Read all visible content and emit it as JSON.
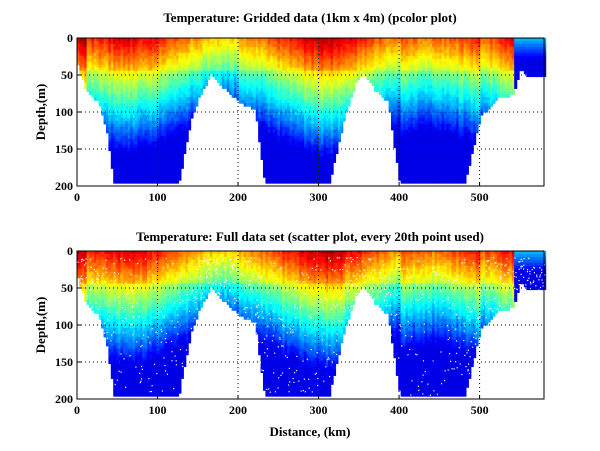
{
  "chart_data": [
    {
      "type": "heatmap",
      "title": "Temperature: Gridded data (1km x 4m) (pcolor plot)",
      "xlabel": "",
      "ylabel": "Depth,(m)",
      "xlim": [
        0,
        580
      ],
      "ylim": [
        200,
        0
      ],
      "xticks": [
        0,
        100,
        200,
        300,
        400,
        500
      ],
      "yticks": [
        0,
        50,
        100,
        150,
        200
      ],
      "grid": true,
      "colormap": "jet",
      "style": "pcolor",
      "bottom_profile": {
        "distance_km": [
          0,
          10,
          25,
          35,
          45,
          90,
          125,
          140,
          150,
          165,
          180,
          200,
          220,
          232,
          300,
          312,
          330,
          345,
          355,
          370,
          385,
          400,
          480,
          488,
          500,
          520,
          540,
          550,
          560,
          580
        ],
        "max_depth_m": [
          35,
          70,
          85,
          120,
          196,
          196,
          196,
          110,
          80,
          48,
          65,
          85,
          95,
          196,
          196,
          196,
          110,
          60,
          45,
          70,
          85,
          196,
          196,
          160,
          105,
          80,
          75,
          40,
          52,
          52
        ]
      }
    },
    {
      "type": "scatter",
      "title": "Temperature: Full data set (scatter plot, every 20th point used)",
      "xlabel": "Distance, (km)",
      "ylabel": "Depth,(m)",
      "xlim": [
        0,
        580
      ],
      "ylim": [
        200,
        0
      ],
      "xticks": [
        0,
        100,
        200,
        300,
        400,
        500
      ],
      "yticks": [
        0,
        50,
        100,
        150,
        200
      ],
      "grid": true,
      "colormap": "jet",
      "style": "scatter",
      "bottom_profile": {
        "distance_km": [
          0,
          10,
          25,
          35,
          45,
          90,
          125,
          140,
          150,
          165,
          180,
          200,
          220,
          232,
          300,
          312,
          330,
          345,
          355,
          370,
          385,
          400,
          480,
          488,
          500,
          520,
          540,
          550,
          560,
          580
        ],
        "max_depth_m": [
          35,
          70,
          85,
          120,
          194,
          194,
          194,
          110,
          80,
          48,
          65,
          85,
          95,
          194,
          194,
          194,
          110,
          60,
          45,
          70,
          85,
          194,
          194,
          160,
          105,
          80,
          75,
          40,
          52,
          52
        ]
      }
    }
  ]
}
